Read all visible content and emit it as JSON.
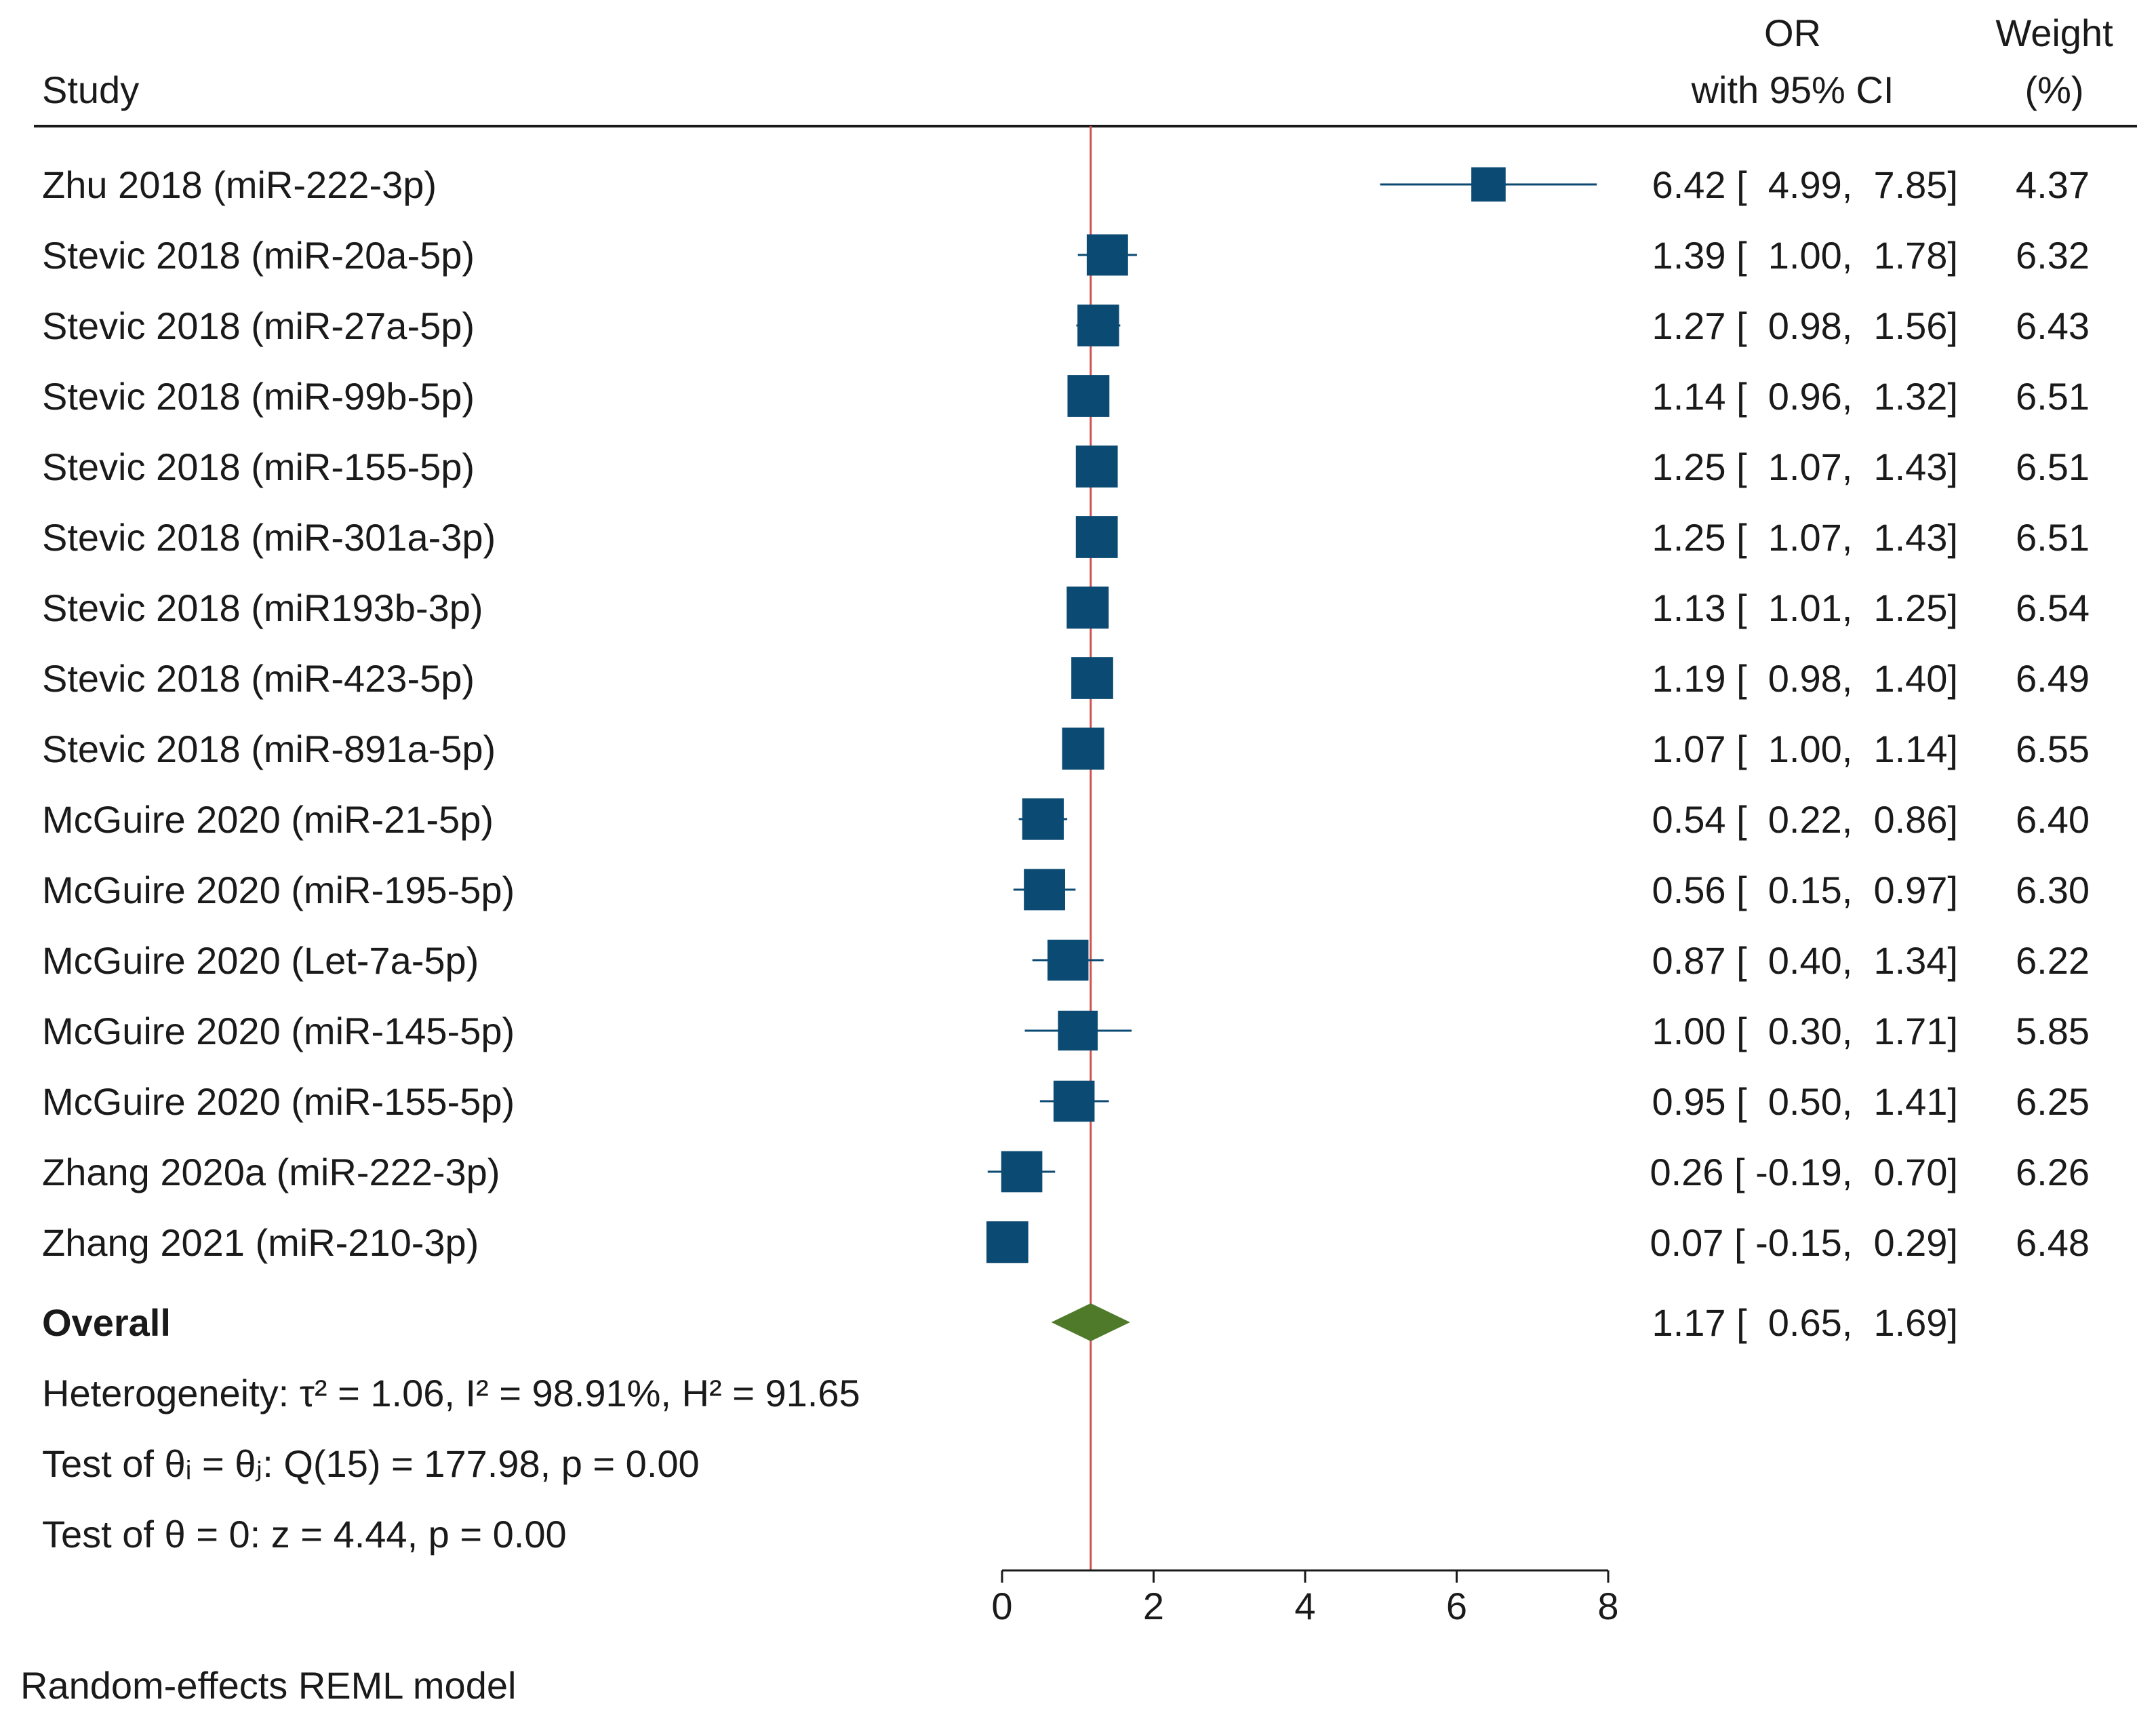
{
  "header": {
    "study": "Study",
    "or_line1": "OR",
    "or_line2": "with 95% CI",
    "weight_line1": "Weight",
    "weight_line2": "(%)"
  },
  "overall": {
    "label": "Overall",
    "ci_text": "1.17 [  0.65,  1.69]"
  },
  "stats": {
    "heterogeneity": "Heterogeneity: τ² = 1.06, I² = 98.91%, H² = 91.65",
    "test_equal": "Test of θᵢ = θⱼ: Q(15) = 177.98, p = 0.00",
    "test_zero": "Test of θ = 0: z = 4.44, p = 0.00"
  },
  "footnote": "Random-effects REML model",
  "colors": {
    "marker": "#0b4a72",
    "diamond": "#4e7a2a",
    "reference_line": "#d05050"
  },
  "chart_data": {
    "type": "forest",
    "title": "",
    "xlim": [
      0,
      8
    ],
    "xticks": [
      0,
      2,
      4,
      6,
      8
    ],
    "reference_value": 1.17,
    "studies": [
      {
        "label": "Zhu 2018 (miR-222-3p)",
        "or": 6.42,
        "lo": 4.99,
        "hi": 7.85,
        "weight": 4.37,
        "ci_text": "6.42 [  4.99,  7.85]",
        "weight_text": "4.37"
      },
      {
        "label": "Stevic 2018 (miR-20a-5p)",
        "or": 1.39,
        "lo": 1.0,
        "hi": 1.78,
        "weight": 6.32,
        "ci_text": "1.39 [  1.00,  1.78]",
        "weight_text": "6.32"
      },
      {
        "label": "Stevic 2018 (miR-27a-5p)",
        "or": 1.27,
        "lo": 0.98,
        "hi": 1.56,
        "weight": 6.43,
        "ci_text": "1.27 [  0.98,  1.56]",
        "weight_text": "6.43"
      },
      {
        "label": "Stevic 2018 (miR-99b-5p)",
        "or": 1.14,
        "lo": 0.96,
        "hi": 1.32,
        "weight": 6.51,
        "ci_text": "1.14 [  0.96,  1.32]",
        "weight_text": "6.51"
      },
      {
        "label": "Stevic 2018 (miR-155-5p)",
        "or": 1.25,
        "lo": 1.07,
        "hi": 1.43,
        "weight": 6.51,
        "ci_text": "1.25 [  1.07,  1.43]",
        "weight_text": "6.51"
      },
      {
        "label": "Stevic 2018 (miR-301a-3p)",
        "or": 1.25,
        "lo": 1.07,
        "hi": 1.43,
        "weight": 6.51,
        "ci_text": "1.25 [  1.07,  1.43]",
        "weight_text": "6.51"
      },
      {
        "label": "Stevic 2018 (miR193b-3p)",
        "or": 1.13,
        "lo": 1.01,
        "hi": 1.25,
        "weight": 6.54,
        "ci_text": "1.13 [  1.01,  1.25]",
        "weight_text": "6.54"
      },
      {
        "label": "Stevic 2018 (miR-423-5p)",
        "or": 1.19,
        "lo": 0.98,
        "hi": 1.4,
        "weight": 6.49,
        "ci_text": "1.19 [  0.98,  1.40]",
        "weight_text": "6.49"
      },
      {
        "label": "Stevic 2018 (miR-891a-5p)",
        "or": 1.07,
        "lo": 1.0,
        "hi": 1.14,
        "weight": 6.55,
        "ci_text": "1.07 [  1.00,  1.14]",
        "weight_text": "6.55"
      },
      {
        "label": "McGuire 2020 (miR-21-5p)",
        "or": 0.54,
        "lo": 0.22,
        "hi": 0.86,
        "weight": 6.4,
        "ci_text": "0.54 [  0.22,  0.86]",
        "weight_text": "6.40"
      },
      {
        "label": "McGuire 2020 (miR-195-5p)",
        "or": 0.56,
        "lo": 0.15,
        "hi": 0.97,
        "weight": 6.3,
        "ci_text": "0.56 [  0.15,  0.97]",
        "weight_text": "6.30"
      },
      {
        "label": "McGuire 2020 (Let-7a-5p)",
        "or": 0.87,
        "lo": 0.4,
        "hi": 1.34,
        "weight": 6.22,
        "ci_text": "0.87 [  0.40,  1.34]",
        "weight_text": "6.22"
      },
      {
        "label": "McGuire 2020 (miR-145-5p)",
        "or": 1.0,
        "lo": 0.3,
        "hi": 1.71,
        "weight": 5.85,
        "ci_text": "1.00 [  0.30,  1.71]",
        "weight_text": "5.85"
      },
      {
        "label": "McGuire 2020 (miR-155-5p)",
        "or": 0.95,
        "lo": 0.5,
        "hi": 1.41,
        "weight": 6.25,
        "ci_text": "0.95 [  0.50,  1.41]",
        "weight_text": "6.25"
      },
      {
        "label": "Zhang 2020a (miR-222-3p)",
        "or": 0.26,
        "lo": -0.19,
        "hi": 0.7,
        "weight": 6.26,
        "ci_text": "0.26 [ -0.19,  0.70]",
        "weight_text": "6.26"
      },
      {
        "label": "Zhang 2021 (miR-210-3p)",
        "or": 0.07,
        "lo": -0.15,
        "hi": 0.29,
        "weight": 6.48,
        "ci_text": "0.07 [ -0.15,  0.29]",
        "weight_text": "6.48"
      }
    ],
    "overall": {
      "or": 1.17,
      "lo": 0.65,
      "hi": 1.69
    }
  }
}
